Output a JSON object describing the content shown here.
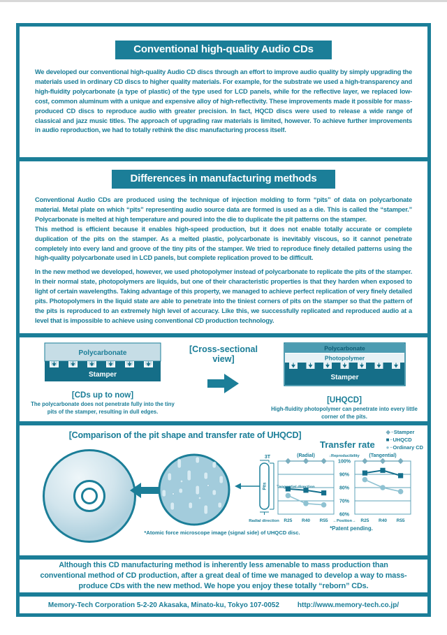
{
  "accent": "#1b7e98",
  "sections": {
    "conventional": {
      "title": "Conventional high-quality Audio CDs",
      "body": "We developed our conventional high-quality Audio CD discs through an effort to improve audio quality by simply upgrading the materials used in ordinary CD discs to higher quality materials. For example, for the substrate we used a high-transparency and high-fluidity polycarbonate (a type of plastic) of the type used for LCD panels, while for the reflective layer, we replaced low-cost, common aluminum with a unique and expensive alloy of high-reflectivity. These improvements made it possible for mass-produced CD discs to reproduce audio with greater precision. In fact, HQCD discs were used to release a wide range of classical and jazz music titles. The approach of upgrading raw materials is limited, however. To achieve further improvements in audio reproduction, we had to totally rethink the disc manufacturing process itself."
    },
    "differences": {
      "title": "Differences in manufacturing methods",
      "para1": "Conventional Audio CDs are produced using the technique of injection molding to form “pits” of data on polycarbonate material. Metal plate on which “pits” representing audio source data are formed is used as a die. This is called the “stamper.” Polycarbonate is melted at high temperature and poured into the die to duplicate the pit patterns on the stamper.\nThis method is efficient because it enables high-speed production, but it does not enable totally accurate or complete duplication of the pits on the stamper. As a melted plastic, polycarbonate is inevitably viscous, so it cannot penetrate completely into every land and groove of the tiny pits of the stamper. We tried to reproduce finely detailed patterns using the high-quality polycarbonate used in LCD panels, but complete replication proved to be difficult.",
      "para2": "In the new method we developed, however, we used photopolymer instead of polycarbonate to replicate the pits of the stamper. In their normal state, photopolymers are liquids, but one of their characteristic properties is that they harden when exposed to light of certain wavelengths. Taking advantage of this property, we managed to achieve perfect replication of very finely detailed pits. Photopolymers in the liquid state are able to penetrate into the tiniest corners of pits on the stamper so that the pattern of the pits is reproduced to an extremely high level of accuracy. Like this, we successfully replicated and reproduced audio at a level that is impossible to achieve using conventional CD production technology."
    },
    "cross_section": {
      "view_label": "[Cross-sectional view]",
      "left": {
        "layers": [
          "Polycarbonate",
          "Stamper"
        ],
        "caption": "[CDs up to now]",
        "description": "The polycarbonate does not penetrate fully into the tiny pits of the stamper, resulting in dull edges."
      },
      "right": {
        "layers": [
          "Polycarbonate",
          "Photopolymer",
          "Stamper"
        ],
        "caption": "[UHQCD]",
        "description": "High-fluidity photopolymer can penetrate into every little corner of the pits."
      }
    },
    "comparison": {
      "title": "[Comparison of the pit shape and transfer rate of UHQCD]",
      "microscope_note": "*Atomic force microscope image (signal side) of UHQCD disc.",
      "patent_note": "*Patent pending.",
      "pit_labels": {
        "three_t": "3T",
        "pits": "Pits",
        "tangential": "Tangential direction",
        "radial": "Radial direction"
      }
    },
    "closing": {
      "body": "Although this CD manufacturing method is inherently less amenable to mass production than conventional method of CD production, after a great deal of time we managed to develop a way to mass-produce CDs with the new method. We hope you enjoy these totally “reborn” CDs."
    },
    "footer": {
      "address": "Memory-Tech Corporation 5-2-20 Akasaka, Minato-ku, Tokyo 107-0052",
      "url": "http://www.memory-tech.co.jp/"
    }
  },
  "chart_data": {
    "type": "line",
    "title": "Transfer rate",
    "ylabel": "↓Reproducibility",
    "xlabel": "←Position→",
    "ylim": [
      60,
      100
    ],
    "yticks": [
      "100%",
      "90%",
      "80%",
      "70%",
      "60%"
    ],
    "x": [
      "R25",
      "R40",
      "R55"
    ],
    "grid": true,
    "legend_position": "top-right",
    "legend": [
      {
        "name": "Stamper",
        "marker": "diamond",
        "glyph": "◆",
        "color": "#7baebf"
      },
      {
        "name": "UHQCD",
        "marker": "square",
        "glyph": "■",
        "color": "#156f8c"
      },
      {
        "name": "Ordinary CD",
        "marker": "circle",
        "glyph": "●",
        "color": "#8fc2d2"
      }
    ],
    "charts": [
      {
        "label": "(Radial)",
        "series": [
          {
            "name": "Stamper",
            "values": [
              100,
              100,
              100
            ]
          },
          {
            "name": "UHQCD",
            "values": [
              79,
              78,
              76
            ]
          },
          {
            "name": "Ordinary CD",
            "values": [
              74,
              68,
              67
            ]
          }
        ]
      },
      {
        "label": "(Tangential)",
        "series": [
          {
            "name": "Stamper",
            "values": [
              100,
              100,
              100
            ]
          },
          {
            "name": "UHQCD",
            "values": [
              91,
              93,
              89
            ]
          },
          {
            "name": "Ordinary CD",
            "values": [
              86,
              80,
              77
            ]
          }
        ]
      }
    ]
  }
}
